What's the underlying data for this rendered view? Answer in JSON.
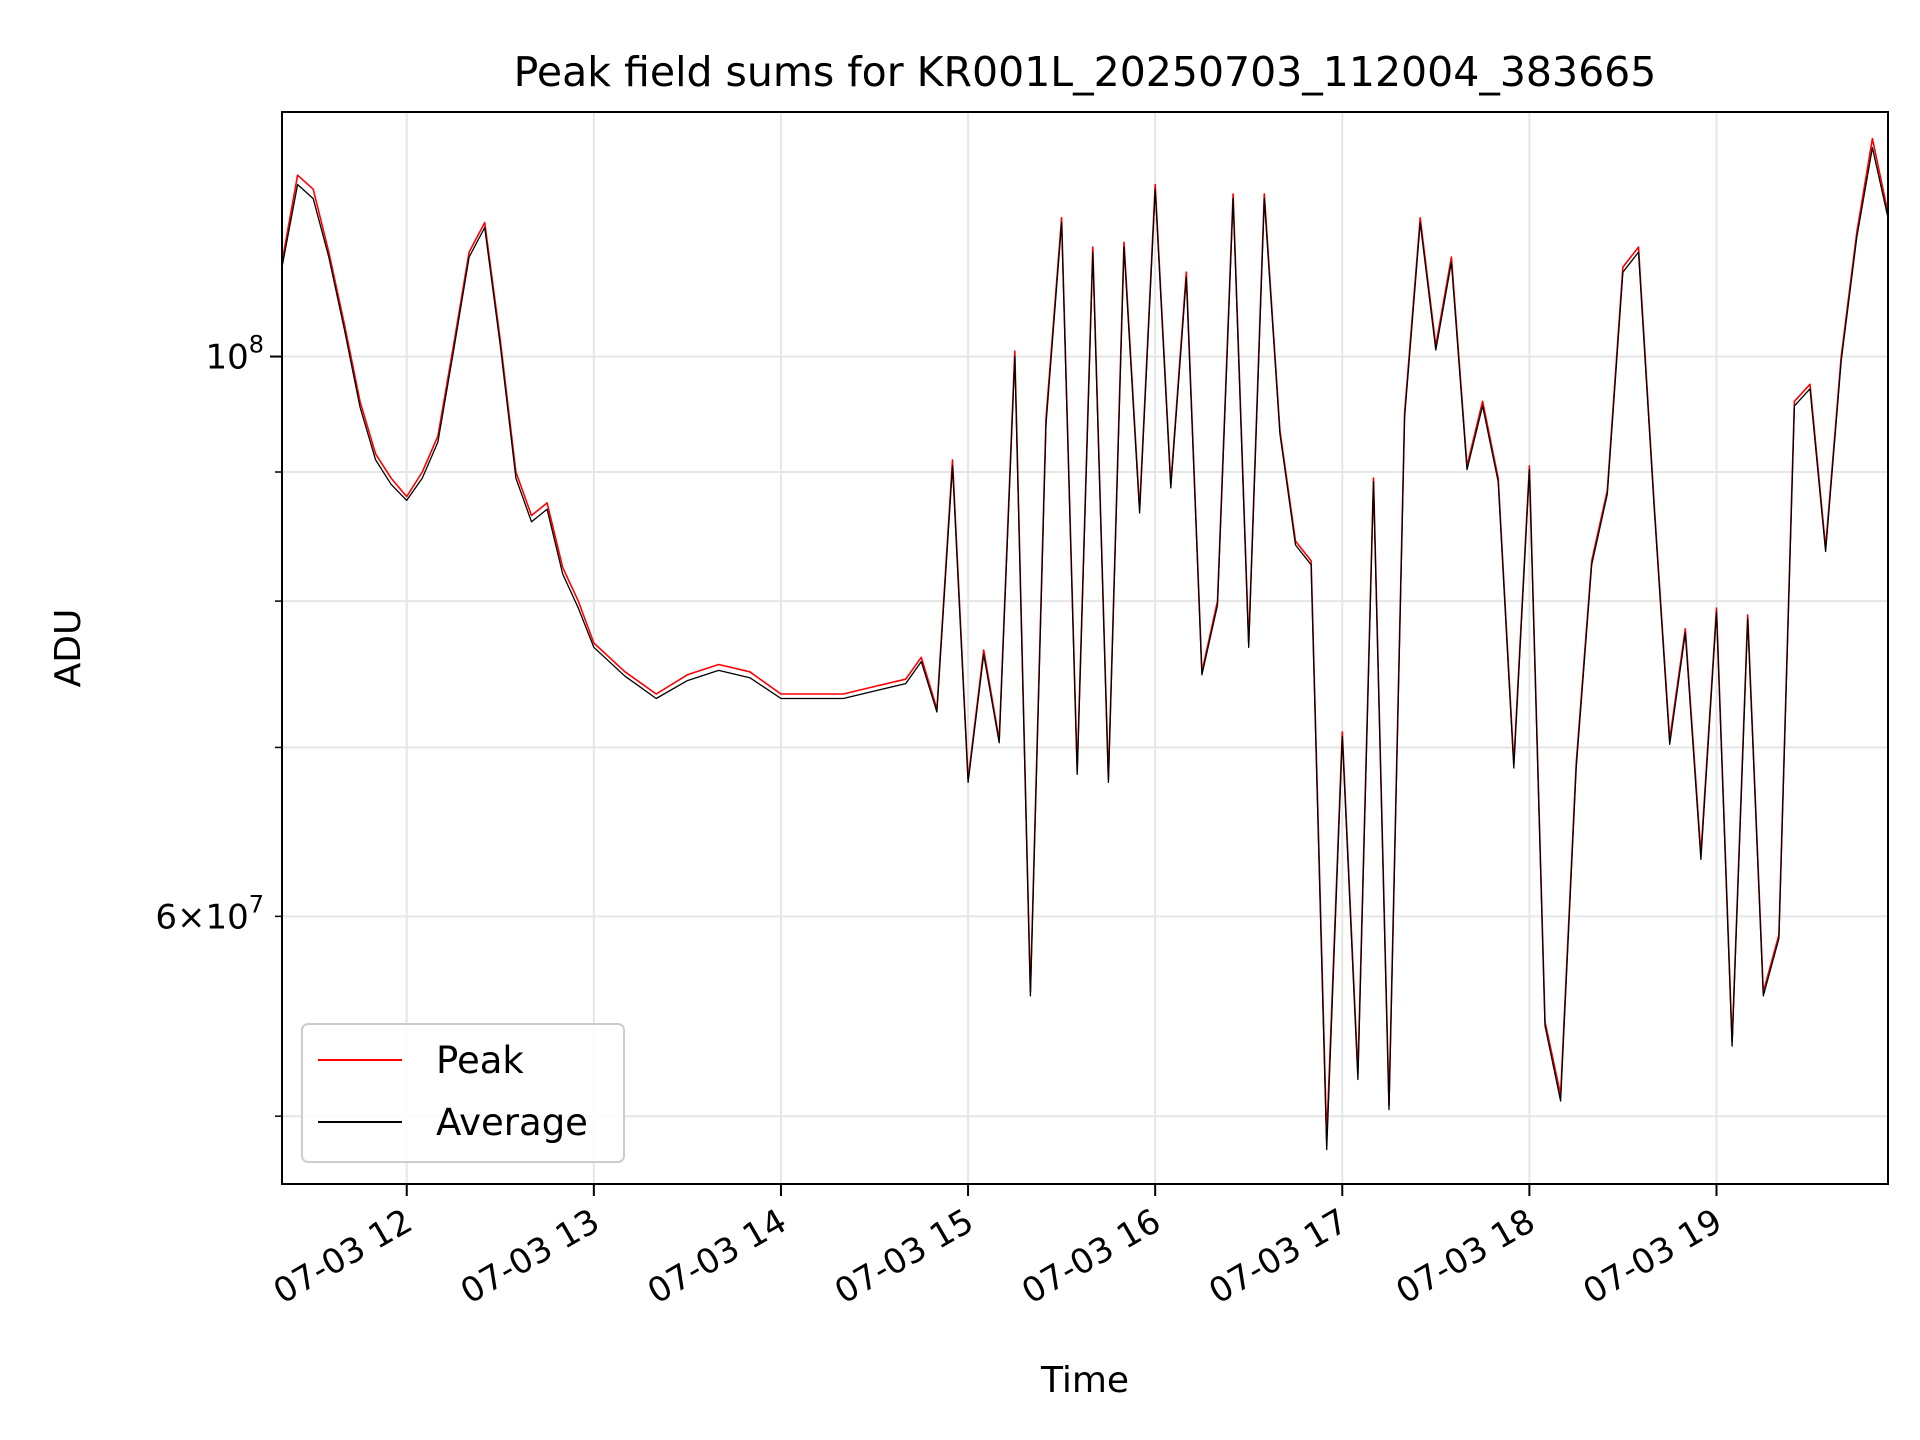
{
  "chart_data": {
    "type": "line",
    "title": "Peak field sums for KR001L_20250703_112004_383665",
    "xlabel": "Time",
    "ylabel": "ADU",
    "yscale": "log",
    "xlim": [
      "2025-07-03 11:20",
      "2025-07-03 19:55"
    ],
    "ylim": [
      47000000,
      125000000
    ],
    "grid": true,
    "legend_position": "lower-left",
    "x_ticks": [
      "07-03 12",
      "07-03 13",
      "07-03 14",
      "07-03 15",
      "07-03 16",
      "07-03 17",
      "07-03 18",
      "07-03 19"
    ],
    "y_ticks_major": [
      {
        "value": 100000000,
        "base": "10",
        "exponent": "8"
      }
    ],
    "y_ticks_minor": [
      {
        "value": 60000000,
        "mantissa": "6",
        "times": "×",
        "base": "10",
        "exponent": "7"
      }
    ],
    "y_minor_gridlines": [
      50000000,
      70000000,
      80000000,
      90000000
    ],
    "series_colors": {
      "Peak": "#ff0000",
      "Average": "#000000"
    },
    "x": [
      "2025-07-03 11:20",
      "2025-07-03 11:25",
      "2025-07-03 11:30",
      "2025-07-03 11:35",
      "2025-07-03 11:40",
      "2025-07-03 11:45",
      "2025-07-03 11:50",
      "2025-07-03 11:55",
      "2025-07-03 12:00",
      "2025-07-03 12:05",
      "2025-07-03 12:10",
      "2025-07-03 12:15",
      "2025-07-03 12:20",
      "2025-07-03 12:25",
      "2025-07-03 12:30",
      "2025-07-03 12:35",
      "2025-07-03 12:40",
      "2025-07-03 12:45",
      "2025-07-03 12:50",
      "2025-07-03 12:55",
      "2025-07-03 13:00",
      "2025-07-03 13:10",
      "2025-07-03 13:20",
      "2025-07-03 13:30",
      "2025-07-03 13:40",
      "2025-07-03 13:50",
      "2025-07-03 14:00",
      "2025-07-03 14:10",
      "2025-07-03 14:20",
      "2025-07-03 14:30",
      "2025-07-03 14:40",
      "2025-07-03 14:45",
      "2025-07-03 14:50",
      "2025-07-03 14:55",
      "2025-07-03 15:00",
      "2025-07-03 15:05",
      "2025-07-03 15:10",
      "2025-07-03 15:15",
      "2025-07-03 15:20",
      "2025-07-03 15:25",
      "2025-07-03 15:30",
      "2025-07-03 15:35",
      "2025-07-03 15:40",
      "2025-07-03 15:45",
      "2025-07-03 15:50",
      "2025-07-03 15:55",
      "2025-07-03 16:00",
      "2025-07-03 16:05",
      "2025-07-03 16:10",
      "2025-07-03 16:15",
      "2025-07-03 16:20",
      "2025-07-03 16:25",
      "2025-07-03 16:30",
      "2025-07-03 16:35",
      "2025-07-03 16:40",
      "2025-07-03 16:45",
      "2025-07-03 16:50",
      "2025-07-03 16:55",
      "2025-07-03 17:00",
      "2025-07-03 17:05",
      "2025-07-03 17:10",
      "2025-07-03 17:15",
      "2025-07-03 17:20",
      "2025-07-03 17:25",
      "2025-07-03 17:30",
      "2025-07-03 17:35",
      "2025-07-03 17:40",
      "2025-07-03 17:45",
      "2025-07-03 17:50",
      "2025-07-03 17:55",
      "2025-07-03 18:00",
      "2025-07-03 18:05",
      "2025-07-03 18:10",
      "2025-07-03 18:15",
      "2025-07-03 18:20",
      "2025-07-03 18:25",
      "2025-07-03 18:30",
      "2025-07-03 18:35",
      "2025-07-03 18:40",
      "2025-07-03 18:45",
      "2025-07-03 18:50",
      "2025-07-03 18:55",
      "2025-07-03 19:00",
      "2025-07-03 19:05",
      "2025-07-03 19:10",
      "2025-07-03 19:15",
      "2025-07-03 19:20",
      "2025-07-03 19:25",
      "2025-07-03 19:30",
      "2025-07-03 19:35",
      "2025-07-03 19:40",
      "2025-07-03 19:45",
      "2025-07-03 19:50",
      "2025-07-03 19:55"
    ],
    "series": [
      {
        "name": "Peak",
        "values": [
          109000000,
          118000000,
          116500000,
          110000000,
          103000000,
          96000000,
          91500000,
          89500000,
          88000000,
          90000000,
          93000000,
          101000000,
          110000000,
          113000000,
          101500000,
          90000000,
          86500000,
          87500000,
          82500000,
          80000000,
          77000000,
          75000000,
          73500000,
          74800000,
          75500000,
          75000000,
          73500000,
          73500000,
          73500000,
          74000000,
          74500000,
          76000000,
          72500000,
          91000000,
          68000000,
          76500000,
          70500000,
          100500000,
          56000000,
          94500000,
          113500000,
          68500000,
          110500000,
          68000000,
          111000000,
          87000000,
          117000000,
          89000000,
          108000000,
          75000000,
          80000000,
          116000000,
          77000000,
          116000000,
          93500000,
          84500000,
          83000000,
          49000000,
          71000000,
          52000000,
          89500000,
          50500000,
          95000000,
          113500000,
          101000000,
          109500000,
          90500000,
          96000000,
          89500000,
          69000000,
          90500000,
          54500000,
          51000000,
          69000000,
          83000000,
          88500000,
          108500000,
          110500000,
          87500000,
          70500000,
          78000000,
          63500000,
          79500000,
          53500000,
          79000000,
          56000000,
          59000000,
          96000000,
          97500000,
          84000000,
          100000000,
          112000000,
          122000000,
          114000000
        ]
      },
      {
        "name": "Average",
        "values": [
          108500000,
          117000000,
          115500000,
          109500000,
          102500000,
          95500000,
          91000000,
          89000000,
          87700000,
          89500000,
          92500000,
          100500000,
          109500000,
          112500000,
          101000000,
          89500000,
          86000000,
          87000000,
          82000000,
          79500000,
          76700000,
          74700000,
          73200000,
          74400000,
          75100000,
          74600000,
          73200000,
          73200000,
          73200000,
          73700000,
          74200000,
          75700000,
          72300000,
          90500000,
          67800000,
          76200000,
          70300000,
          100000000,
          55800000,
          94000000,
          113000000,
          68300000,
          110000000,
          67800000,
          110500000,
          86700000,
          116500000,
          88700000,
          107500000,
          74800000,
          79700000,
          115500000,
          76700000,
          115500000,
          93200000,
          84200000,
          82700000,
          48500000,
          70700000,
          51700000,
          89200000,
          50300000,
          94600000,
          113000000,
          100600000,
          109000000,
          90200000,
          95600000,
          89200000,
          68700000,
          90200000,
          54300000,
          50700000,
          68700000,
          82700000,
          88200000,
          108000000,
          110000000,
          87200000,
          70200000,
          77700000,
          63200000,
          79200000,
          53300000,
          78700000,
          55800000,
          58800000,
          95600000,
          97100000,
          83700000,
          99600000,
          111500000,
          121000000,
          113500000
        ]
      }
    ]
  }
}
